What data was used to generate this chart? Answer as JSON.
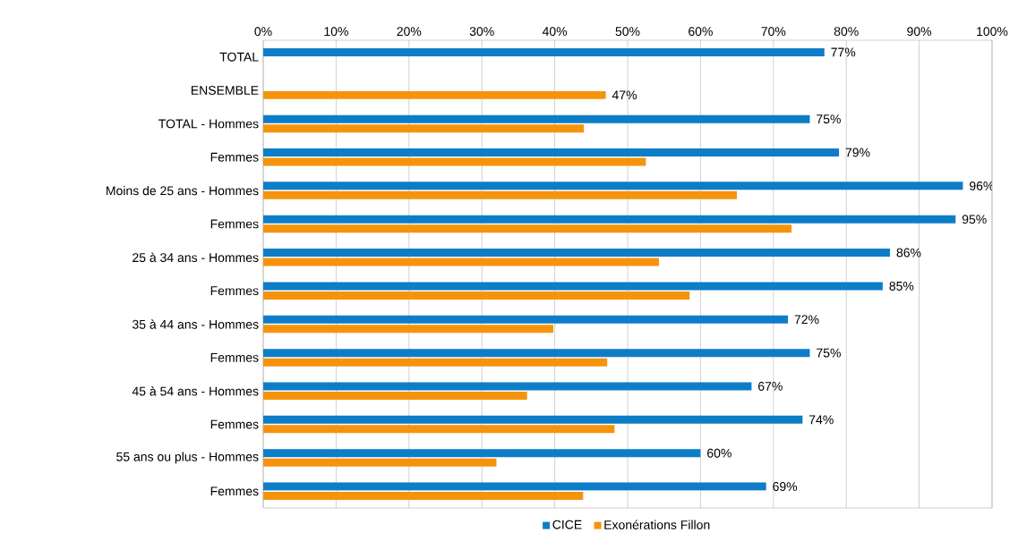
{
  "chart_data": {
    "type": "bar",
    "orientation": "horizontal",
    "categories": [
      "TOTAL",
      "ENSEMBLE",
      "TOTAL - Hommes",
      "Femmes",
      "Moins de 25 ans - Hommes",
      "Femmes",
      "25 à 34 ans - Hommes",
      "Femmes",
      "35 à 44 ans - Hommes",
      "Femmes",
      "45 à 54 ans - Hommes",
      "Femmes",
      "55 ans ou plus - Hommes",
      "Femmes"
    ],
    "series": [
      {
        "name": "CICE",
        "color": "#0e7dc8",
        "values": [
          77,
          null,
          75,
          79,
          96,
          95,
          86,
          85,
          72,
          75,
          67,
          74,
          60,
          69
        ],
        "value_labels": [
          "77%",
          null,
          "75%",
          "79%",
          "96%",
          "95%",
          "86%",
          "85%",
          "72%",
          "75%",
          "67%",
          "74%",
          "60%",
          "69%"
        ]
      },
      {
        "name": "Exonérations Fillon",
        "color": "#f5940c",
        "values": [
          null,
          47,
          44,
          52.5,
          65,
          72.5,
          54.3,
          58.5,
          39.8,
          47.2,
          36.2,
          48.2,
          32,
          43.9
        ],
        "value_labels": [
          null,
          "47%",
          null,
          null,
          null,
          null,
          null,
          null,
          null,
          null,
          null,
          null,
          null,
          null
        ]
      }
    ],
    "xlim": [
      0,
      100
    ],
    "xticks": [
      {
        "value": 0,
        "label": "0%"
      },
      {
        "value": 10,
        "label": "10%"
      },
      {
        "value": 20,
        "label": "20%"
      },
      {
        "value": 30,
        "label": "30%"
      },
      {
        "value": 40,
        "label": "40%"
      },
      {
        "value": 50,
        "label": "50%"
      },
      {
        "value": 60,
        "label": "60%"
      },
      {
        "value": 70,
        "label": "70%"
      },
      {
        "value": 80,
        "label": "80%"
      },
      {
        "value": 90,
        "label": "90%"
      },
      {
        "value": 100,
        "label": "100%"
      }
    ],
    "grid": "x",
    "legend": "bottom"
  }
}
